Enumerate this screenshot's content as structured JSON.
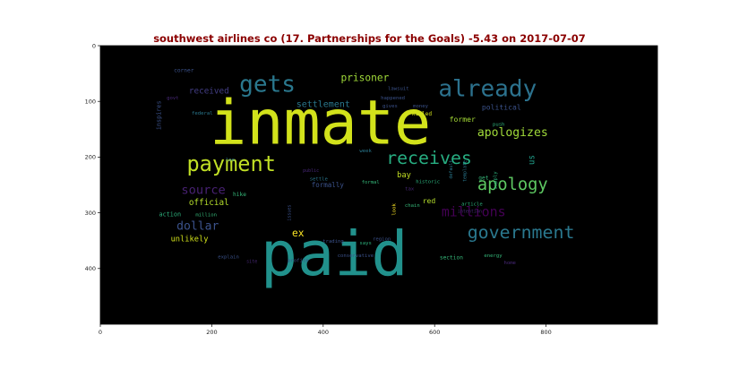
{
  "chart_data": {
    "type": "wordcloud",
    "title": "southwest airlines co (17. Partnerships for the Goals) -5.43 on 2017-07-07",
    "xlim": [
      0,
      1000
    ],
    "ylim": [
      500,
      0
    ],
    "x_ticks": [
      0,
      200,
      400,
      600,
      800
    ],
    "y_ticks": [
      0,
      100,
      200,
      300,
      400
    ],
    "background": "#000000",
    "words": [
      {
        "text": "inmate",
        "x": 395,
        "y": 140,
        "size": 110,
        "color": "#d2e21b",
        "rotate": 0
      },
      {
        "text": "paid",
        "x": 420,
        "y": 375,
        "size": 110,
        "color": "#21918c",
        "rotate": 0
      },
      {
        "text": "payment",
        "x": 235,
        "y": 212,
        "size": 38,
        "color": "#c0df25",
        "rotate": 0
      },
      {
        "text": "gets",
        "x": 300,
        "y": 70,
        "size": 42,
        "color": "#2a788e",
        "rotate": 0
      },
      {
        "text": "already",
        "x": 695,
        "y": 78,
        "size": 42,
        "color": "#2c728e",
        "rotate": 0
      },
      {
        "text": "receives",
        "x": 590,
        "y": 202,
        "size": 32,
        "color": "#27ad81",
        "rotate": 0
      },
      {
        "text": "apology",
        "x": 740,
        "y": 250,
        "size": 30,
        "color": "#5ec962",
        "rotate": 0
      },
      {
        "text": "government",
        "x": 755,
        "y": 335,
        "size": 32,
        "color": "#2a788e",
        "rotate": 0
      },
      {
        "text": "millions",
        "x": 670,
        "y": 298,
        "size": 24,
        "color": "#440154",
        "rotate": 0
      },
      {
        "text": "apologizes",
        "x": 740,
        "y": 157,
        "size": 21,
        "color": "#a0da39",
        "rotate": 0
      },
      {
        "text": "source",
        "x": 185,
        "y": 260,
        "size": 22,
        "color": "#482173",
        "rotate": 0
      },
      {
        "text": "dollar",
        "x": 175,
        "y": 325,
        "size": 21,
        "color": "#3b528b",
        "rotate": 0
      },
      {
        "text": "prisoner",
        "x": 475,
        "y": 58,
        "size": 18,
        "color": "#a0da39",
        "rotate": 0
      },
      {
        "text": "settlement",
        "x": 400,
        "y": 106,
        "size": 16,
        "color": "#2a788e",
        "rotate": 0
      },
      {
        "text": "received",
        "x": 195,
        "y": 82,
        "size": 15,
        "color": "#433e85",
        "rotate": 0
      },
      {
        "text": "official",
        "x": 195,
        "y": 282,
        "size": 15,
        "color": "#b5de2b",
        "rotate": 0
      },
      {
        "text": "ex",
        "x": 355,
        "y": 337,
        "size": 18,
        "color": "#fde725",
        "rotate": 0
      },
      {
        "text": "unlikely",
        "x": 160,
        "y": 348,
        "size": 14,
        "color": "#d2e21b",
        "rotate": 0
      },
      {
        "text": "political",
        "x": 720,
        "y": 110,
        "size": 13,
        "color": "#3b528b",
        "rotate": 0
      },
      {
        "text": "former",
        "x": 650,
        "y": 132,
        "size": 13,
        "color": "#a5db36",
        "rotate": 0
      },
      {
        "text": "us",
        "x": 775,
        "y": 205,
        "size": 15,
        "color": "#1f9e89",
        "rotate": -90
      },
      {
        "text": "bay",
        "x": 545,
        "y": 233,
        "size": 14,
        "color": "#c2df23",
        "rotate": 0
      },
      {
        "text": "red",
        "x": 590,
        "y": 278,
        "size": 13,
        "color": "#b5de2b",
        "rotate": 0
      },
      {
        "text": "formally",
        "x": 408,
        "y": 250,
        "size": 12,
        "color": "#3b528b",
        "rotate": 0
      },
      {
        "text": "action",
        "x": 125,
        "y": 303,
        "size": 11,
        "color": "#2db27d",
        "rotate": 0
      },
      {
        "text": "million",
        "x": 190,
        "y": 305,
        "size": 9,
        "color": "#35b779",
        "rotate": 0
      },
      {
        "text": "inspires",
        "x": 105,
        "y": 125,
        "size": 11,
        "color": "#3b528b",
        "rotate": -90
      },
      {
        "text": "corner",
        "x": 150,
        "y": 45,
        "size": 10,
        "color": "#3b528b",
        "rotate": 0
      },
      {
        "text": "lawsuit",
        "x": 535,
        "y": 78,
        "size": 9,
        "color": "#3b528b",
        "rotate": 0
      },
      {
        "text": "happened",
        "x": 525,
        "y": 95,
        "size": 9,
        "color": "#3b528b",
        "rotate": 0
      },
      {
        "text": "gives",
        "x": 520,
        "y": 109,
        "size": 9,
        "color": "#3b528b",
        "rotate": 0
      },
      {
        "text": "money",
        "x": 575,
        "y": 109,
        "size": 9,
        "color": "#3b528b",
        "rotate": 0
      },
      {
        "text": "killed",
        "x": 577,
        "y": 123,
        "size": 10,
        "color": "#d2e21b",
        "rotate": 0
      },
      {
        "text": "push",
        "x": 715,
        "y": 142,
        "size": 9,
        "color": "#2db27d",
        "rotate": 0
      },
      {
        "text": "govt",
        "x": 130,
        "y": 95,
        "size": 9,
        "color": "#482878",
        "rotate": 0
      },
      {
        "text": "federal",
        "x": 183,
        "y": 122,
        "size": 9,
        "color": "#2a788e",
        "rotate": 0
      },
      {
        "text": "week",
        "x": 476,
        "y": 190,
        "size": 9,
        "color": "#2a788e",
        "rotate": 0
      },
      {
        "text": "lee",
        "x": 233,
        "y": 206,
        "size": 9,
        "color": "#2a788e",
        "rotate": 0
      },
      {
        "text": "public",
        "x": 378,
        "y": 225,
        "size": 8,
        "color": "#482878",
        "rotate": 0
      },
      {
        "text": "settle",
        "x": 392,
        "y": 240,
        "size": 9,
        "color": "#2a788e",
        "rotate": 0
      },
      {
        "text": "formal",
        "x": 485,
        "y": 246,
        "size": 9,
        "color": "#35b779",
        "rotate": 0
      },
      {
        "text": "historic",
        "x": 588,
        "y": 245,
        "size": 9,
        "color": "#2db27d",
        "rotate": 0
      },
      {
        "text": "default",
        "x": 630,
        "y": 222,
        "size": 8,
        "color": "#2a788e",
        "rotate": -90
      },
      {
        "text": "template",
        "x": 655,
        "y": 225,
        "size": 8,
        "color": "#2a788e",
        "rotate": -90
      },
      {
        "text": "get",
        "x": 688,
        "y": 238,
        "size": 10,
        "color": "#35b779",
        "rotate": 0
      },
      {
        "text": "supply",
        "x": 710,
        "y": 242,
        "size": 9,
        "color": "#2db27d",
        "rotate": -90
      },
      {
        "text": "hike",
        "x": 250,
        "y": 268,
        "size": 10,
        "color": "#35b779",
        "rotate": 0
      },
      {
        "text": "tax",
        "x": 555,
        "y": 258,
        "size": 9,
        "color": "#482878",
        "rotate": 0
      },
      {
        "text": "look",
        "x": 528,
        "y": 294,
        "size": 9,
        "color": "#fde725",
        "rotate": -90
      },
      {
        "text": "chain",
        "x": 560,
        "y": 288,
        "size": 9,
        "color": "#35b779",
        "rotate": 0
      },
      {
        "text": "article",
        "x": 667,
        "y": 285,
        "size": 9,
        "color": "#2db27d",
        "rotate": 0
      },
      {
        "text": "intention",
        "x": 663,
        "y": 298,
        "size": 8,
        "color": "#482878",
        "rotate": 0
      },
      {
        "text": "issues",
        "x": 340,
        "y": 300,
        "size": 8,
        "color": "#3b528b",
        "rotate": -90
      },
      {
        "text": "trading",
        "x": 418,
        "y": 352,
        "size": 9,
        "color": "#3b528b",
        "rotate": 0
      },
      {
        "text": "says",
        "x": 476,
        "y": 355,
        "size": 9,
        "color": "#2db27d",
        "rotate": 0
      },
      {
        "text": "region",
        "x": 505,
        "y": 348,
        "size": 9,
        "color": "#3b528b",
        "rotate": 0
      },
      {
        "text": "explain",
        "x": 230,
        "y": 380,
        "size": 9,
        "color": "#3b528b",
        "rotate": 0
      },
      {
        "text": "site",
        "x": 272,
        "y": 388,
        "size": 8,
        "color": "#482878",
        "rotate": 0
      },
      {
        "text": "profile",
        "x": 355,
        "y": 387,
        "size": 9,
        "color": "#3b528b",
        "rotate": 0
      },
      {
        "text": "conservative",
        "x": 458,
        "y": 378,
        "size": 9,
        "color": "#3b528b",
        "rotate": 0
      },
      {
        "text": "section",
        "x": 630,
        "y": 381,
        "size": 10,
        "color": "#35b779",
        "rotate": 0
      },
      {
        "text": "energy",
        "x": 705,
        "y": 378,
        "size": 9,
        "color": "#35b779",
        "rotate": 0
      },
      {
        "text": "home",
        "x": 735,
        "y": 391,
        "size": 9,
        "color": "#482878",
        "rotate": 0
      }
    ]
  }
}
